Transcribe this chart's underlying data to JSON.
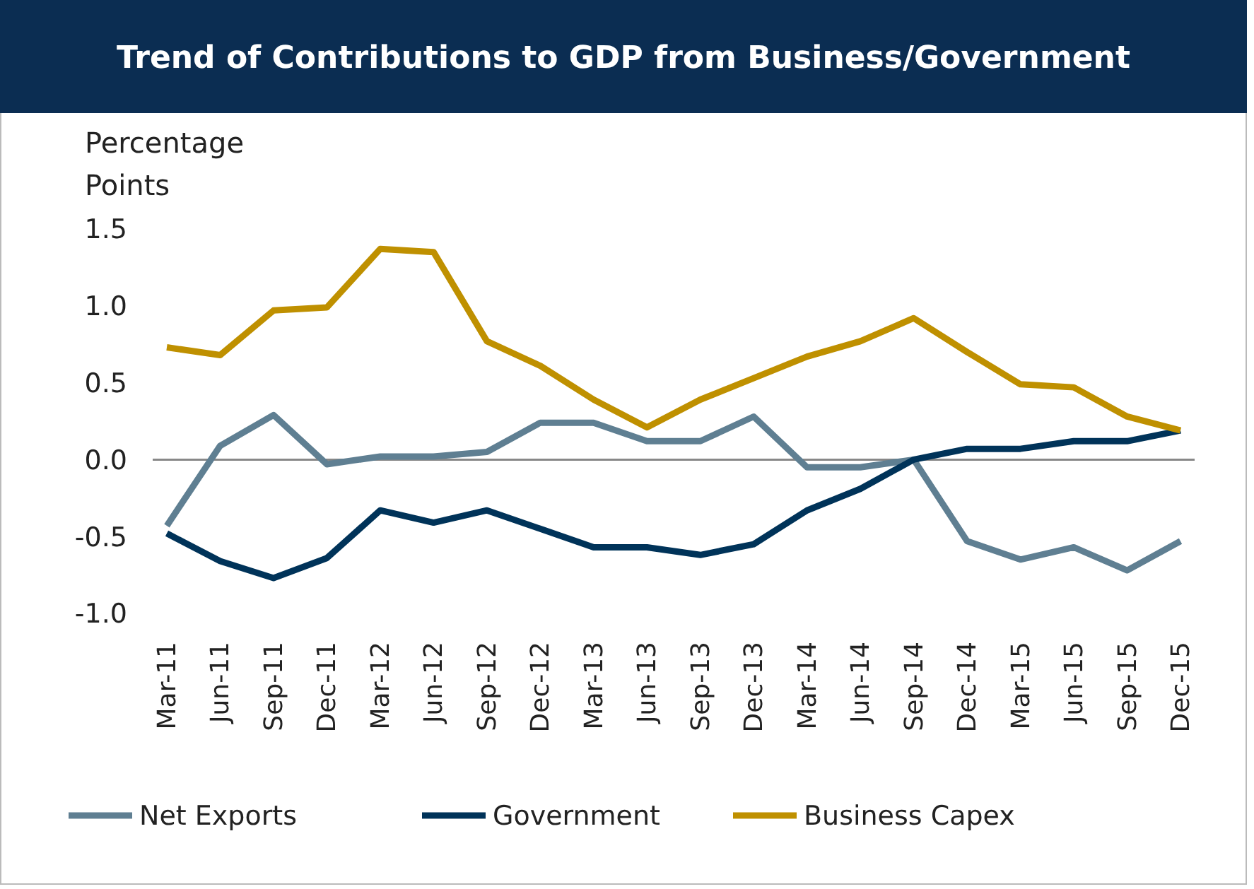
{
  "chart_data": {
    "type": "line",
    "title": "Trend of Contributions to GDP from Business/Government",
    "ylabel": "Percentage Points",
    "categories": [
      "Mar-11",
      "Jun-11",
      "Sep-11",
      "Dec-11",
      "Mar-12",
      "Jun-12",
      "Sep-12",
      "Dec-12",
      "Mar-13",
      "Jun-13",
      "Sep-13",
      "Dec-13",
      "Mar-14",
      "Jun-14",
      "Sep-14",
      "Dec-14",
      "Mar-15",
      "Jun-15",
      "Sep-15",
      "Dec-15"
    ],
    "series": [
      {
        "name": "Net Exports",
        "color": "#5f7f92",
        "values": [
          -0.43,
          0.09,
          0.29,
          -0.03,
          0.02,
          0.02,
          0.05,
          0.24,
          0.24,
          0.12,
          0.12,
          0.28,
          -0.05,
          -0.05,
          0.0,
          -0.53,
          -0.65,
          -0.57,
          -0.72,
          -0.53
        ]
      },
      {
        "name": "Government",
        "color": "#003359",
        "values": [
          -0.48,
          -0.66,
          -0.77,
          -0.64,
          -0.33,
          -0.41,
          -0.33,
          -0.45,
          -0.57,
          -0.57,
          -0.62,
          -0.55,
          -0.33,
          -0.19,
          0.0,
          0.07,
          0.07,
          0.12,
          0.12,
          0.19
        ]
      },
      {
        "name": "Business Capex",
        "color": "#bf9000",
        "values": [
          0.73,
          0.68,
          0.97,
          0.99,
          1.37,
          1.35,
          0.77,
          0.61,
          0.39,
          0.21,
          0.39,
          0.53,
          0.67,
          0.77,
          0.92,
          0.7,
          0.49,
          0.47,
          0.28,
          0.19
        ]
      }
    ],
    "ylim": [
      -1.0,
      1.5
    ],
    "yticks": [
      {
        "value": -1.0,
        "label": "-1.0"
      },
      {
        "value": -0.5,
        "label": "-0.5"
      },
      {
        "value": 0,
        "label": "0.0"
      },
      {
        "value": 0.5,
        "label": "0.5"
      },
      {
        "value": 1.0,
        "label": "1.0"
      },
      {
        "value": 1.5,
        "label": "1.5"
      }
    ],
    "ref_lines": [
      {
        "axis": "y",
        "value": 0,
        "color": "#888888"
      }
    ],
    "grid": false,
    "legend": "bottom",
    "marker": "none",
    "line_style": "solid"
  }
}
